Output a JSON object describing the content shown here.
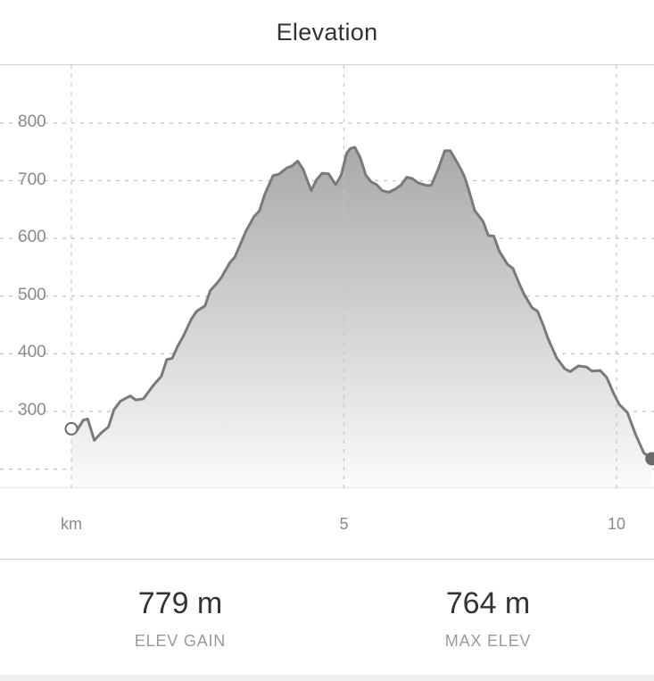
{
  "header": {
    "title": "Elevation"
  },
  "chart_data": {
    "type": "area",
    "x_unit_label": "km",
    "x_ticks": [
      "5",
      "10"
    ],
    "y_ticks": [
      "800",
      "700",
      "600",
      "500",
      "400",
      "300"
    ],
    "xlim": [
      0,
      10.65
    ],
    "ylim": [
      170,
      886
    ],
    "grid": true,
    "series": [
      {
        "x": [
          0,
          0.1,
          0.22,
          0.3,
          0.42,
          0.55,
          0.68,
          0.78,
          0.9,
          1.08,
          1.18,
          1.32,
          1.5,
          1.65,
          1.75,
          1.85,
          1.95,
          2.05,
          2.2,
          2.3,
          2.45,
          2.55,
          2.65,
          2.75,
          2.9,
          3.0,
          3.1,
          3.2,
          3.35,
          3.45,
          3.55,
          3.7,
          3.8,
          3.95,
          4.05,
          4.15,
          4.25,
          4.4,
          4.5,
          4.6,
          4.72,
          4.85,
          4.95,
          5.05,
          5.12,
          5.2,
          5.3,
          5.4,
          5.5,
          5.6,
          5.7,
          5.82,
          5.95,
          6.05,
          6.15,
          6.25,
          6.35,
          6.5,
          6.6,
          6.72,
          6.85,
          6.95,
          7.05,
          7.15,
          7.22,
          7.3,
          7.4,
          7.55,
          7.65,
          7.75,
          7.85,
          8.0,
          8.1,
          8.2,
          8.3,
          8.45,
          8.55,
          8.65,
          8.75,
          8.9,
          9.05,
          9.15,
          9.3,
          9.45,
          9.55,
          9.7,
          9.82,
          9.95,
          10.05,
          10.2,
          10.35,
          10.5,
          10.65
        ],
        "y": [
          270,
          267,
          285,
          287,
          250,
          263,
          273,
          303,
          318,
          327,
          320,
          322,
          345,
          361,
          390,
          392,
          413,
          430,
          460,
          474,
          483,
          510,
          520,
          532,
          557,
          568,
          590,
          612,
          638,
          648,
          677,
          709,
          711,
          722,
          726,
          734,
          720,
          683,
          702,
          713,
          712,
          693,
          710,
          748,
          756,
          758,
          740,
          710,
          698,
          693,
          683,
          680,
          686,
          693,
          706,
          704,
          697,
          692,
          692,
          718,
          752,
          752,
          736,
          719,
          705,
          681,
          648,
          630,
          605,
          604,
          578,
          555,
          548,
          525,
          504,
          480,
          474,
          451,
          425,
          393,
          374,
          369,
          379,
          377,
          370,
          371,
          359,
          331,
          312,
          298,
          260,
          228,
          218
        ]
      }
    ]
  },
  "stats": {
    "elev_gain_value": "779 m",
    "elev_gain_label": "ELEV GAIN",
    "max_elev_value": "764 m",
    "max_elev_label": "MAX ELEV"
  }
}
